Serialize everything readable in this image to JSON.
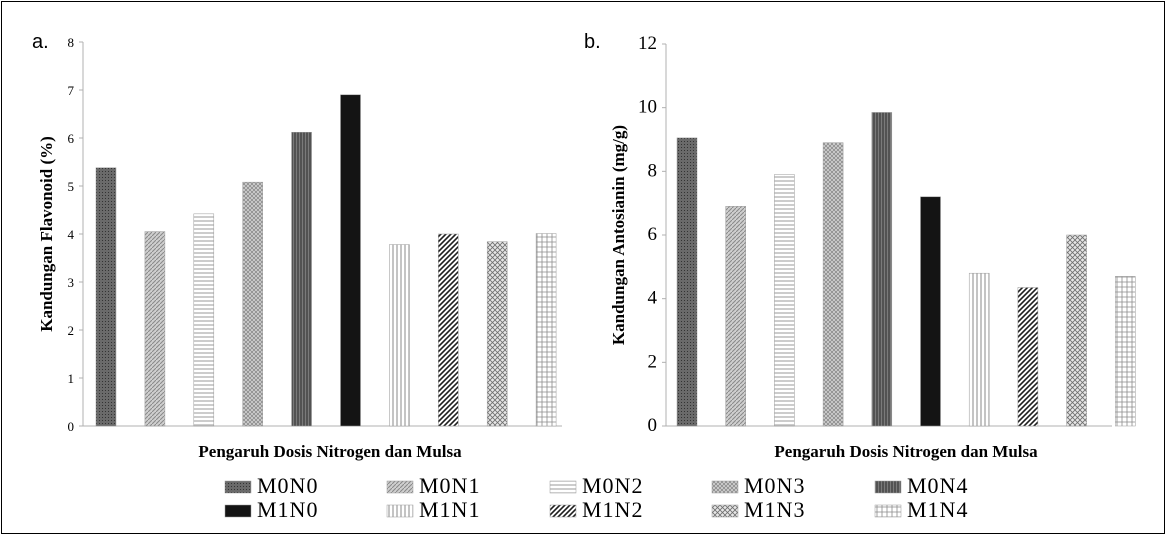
{
  "legend": [
    "M0N0",
    "M0N1",
    "M0N2",
    "M0N3",
    "M0N4",
    "M1N0",
    "M1N1",
    "M1N2",
    "M1N3",
    "M1N4"
  ],
  "chart_data": [
    {
      "panel_label": "a.",
      "type": "bar",
      "categories": [
        "M0N0",
        "M0N1",
        "M0N2",
        "M0N3",
        "M0N4",
        "M1N0",
        "M1N1",
        "M1N2",
        "M1N3",
        "M1N4"
      ],
      "values": [
        5.38,
        4.05,
        4.42,
        5.08,
        6.12,
        6.9,
        3.78,
        4.0,
        3.84,
        4.01
      ],
      "xlabel": "Pengaruh Dosis Nitrogen dan Mulsa",
      "ylabel": "Kandungan Flavonoid (%)",
      "ylim": [
        0,
        8
      ],
      "yticks": [
        0,
        1,
        2,
        3,
        4,
        5,
        6,
        7,
        8
      ]
    },
    {
      "panel_label": "b.",
      "type": "bar",
      "categories": [
        "M0N0",
        "M0N1",
        "M0N2",
        "M0N3",
        "M0N4",
        "M1N0",
        "M1N1",
        "M1N2",
        "M1N3",
        "M1N4"
      ],
      "values": [
        9.05,
        6.9,
        7.9,
        8.9,
        9.85,
        7.2,
        4.8,
        4.35,
        6.0,
        4.7
      ],
      "xlabel": "Pengaruh Dosis Nitrogen dan Mulsa",
      "ylabel": "Kandungan Antosianin (mg/g)",
      "ylim": [
        0,
        12
      ],
      "yticks": [
        0,
        2,
        4,
        6,
        8,
        10,
        12
      ]
    }
  ]
}
